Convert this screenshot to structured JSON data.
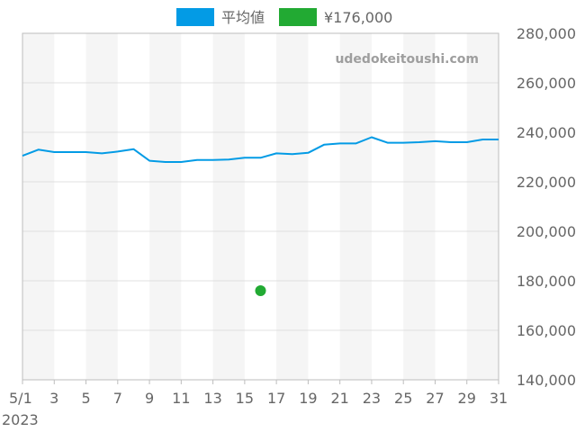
{
  "legend": [
    {
      "label": "平均値",
      "color": "#039be5"
    },
    {
      "label": "¥176,000",
      "color": "#22aa33"
    }
  ],
  "watermark": "udedokeitoushi.com",
  "chart_data": {
    "type": "line",
    "x_unit": "day of May 2023",
    "xlim": [
      1,
      31
    ],
    "ylim": [
      140000,
      280000
    ],
    "y_ticks": [
      140000,
      160000,
      180000,
      200000,
      220000,
      240000,
      260000,
      280000
    ],
    "y_tick_labels": [
      "140,000",
      "160,000",
      "180,000",
      "200,000",
      "220,000",
      "240,000",
      "260,000",
      "280,000"
    ],
    "x_ticks": [
      1,
      3,
      5,
      7,
      9,
      11,
      13,
      15,
      17,
      19,
      21,
      23,
      25,
      27,
      29,
      31
    ],
    "x_tick_labels": [
      "5/1",
      "3",
      "5",
      "7",
      "9",
      "11",
      "13",
      "15",
      "17",
      "19",
      "21",
      "23",
      "25",
      "27",
      "29",
      "31"
    ],
    "x_sublabel": "2023",
    "y_axis_position": "right",
    "background": "alternating vertical bands per two days",
    "grid": true,
    "legend_position": "top-center",
    "series": [
      {
        "name": "平均値",
        "type": "line",
        "color": "#039be5",
        "x": [
          1,
          2,
          3,
          4,
          5,
          6,
          7,
          8,
          9,
          10,
          11,
          12,
          13,
          14,
          15,
          16,
          17,
          18,
          19,
          20,
          21,
          22,
          23,
          24,
          25,
          26,
          27,
          28,
          29,
          30,
          31
        ],
        "values": [
          230500,
          233000,
          232000,
          232000,
          232000,
          231500,
          232200,
          233200,
          228500,
          228000,
          228000,
          228800,
          228800,
          229000,
          229700,
          229700,
          231500,
          231200,
          231700,
          235000,
          235500,
          235500,
          238000,
          235800,
          235800,
          236000,
          236400,
          236000,
          236000,
          237100,
          237100
        ]
      },
      {
        "name": "¥176,000",
        "type": "scatter",
        "color": "#22aa33",
        "x": [
          16
        ],
        "values": [
          176000
        ]
      }
    ]
  }
}
